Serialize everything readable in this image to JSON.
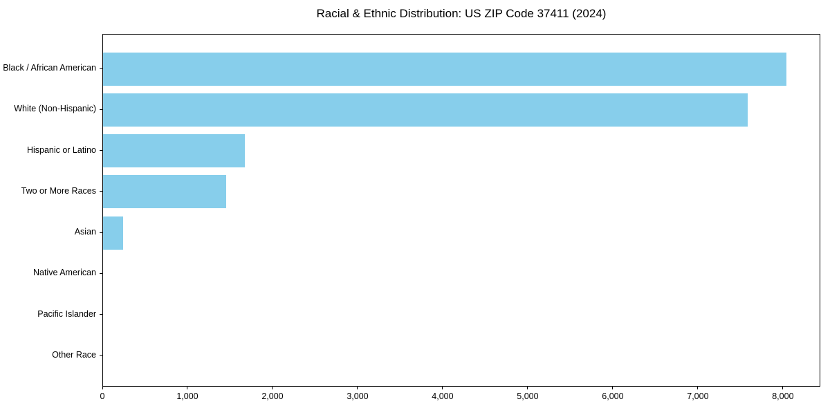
{
  "chart_data": {
    "type": "bar",
    "orientation": "horizontal",
    "title": "Racial & Ethnic Distribution: US ZIP Code 37411 (2024)",
    "categories": [
      "Black / African American",
      "White (Non-Hispanic)",
      "Hispanic or Latino",
      "Two or More Races",
      "Asian",
      "Native American",
      "Pacific Islander",
      "Other Race"
    ],
    "values": [
      8050,
      7590,
      1670,
      1450,
      240,
      0,
      0,
      0
    ],
    "xlabel": "",
    "ylabel": "",
    "xlim": [
      0,
      8440
    ],
    "x_ticks": {
      "values": [
        0,
        1000,
        2000,
        3000,
        4000,
        5000,
        6000,
        7000,
        8000
      ],
      "labels": [
        "0",
        "1,000",
        "2,000",
        "3,000",
        "4,000",
        "5,000",
        "6,000",
        "7,000",
        "8,000"
      ]
    },
    "bar_color": "#87CEEB",
    "axis_color": "#000000",
    "grid": false,
    "legend": false
  }
}
